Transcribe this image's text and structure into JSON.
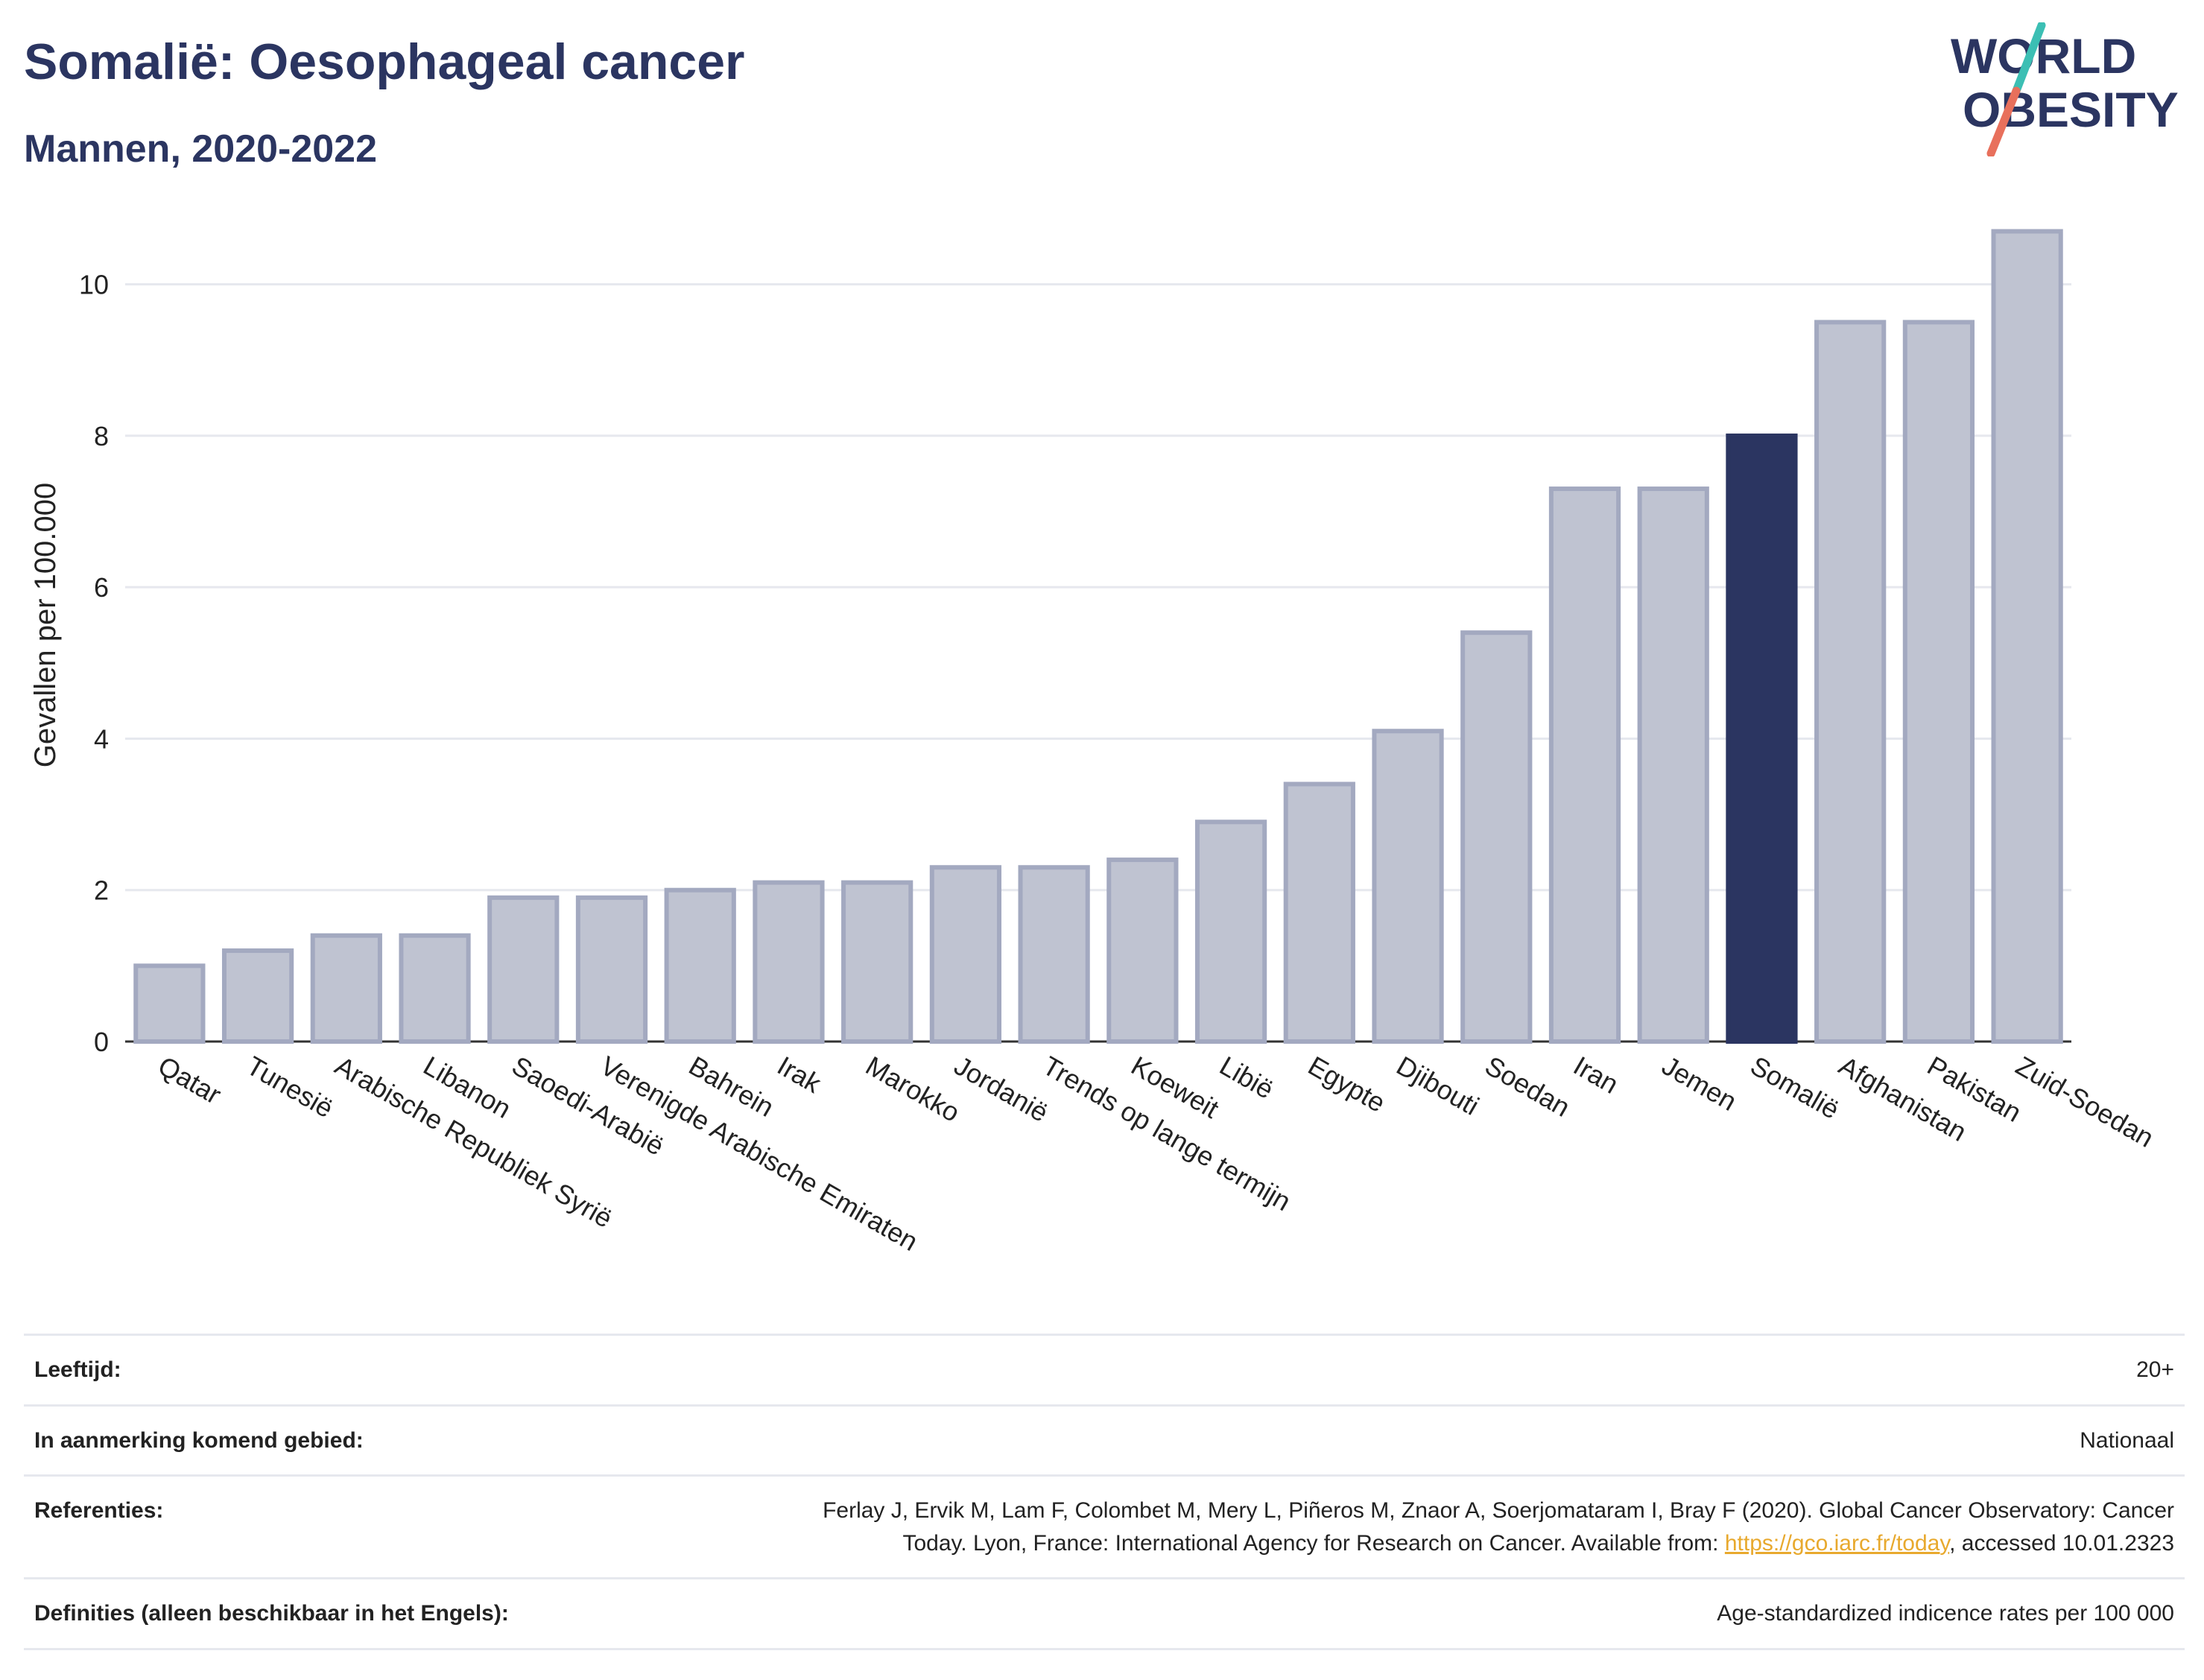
{
  "header": {
    "title": "Somalië: Oesophageal cancer",
    "subtitle": "Mannen, 2020-2022",
    "logo_line1": "WORLD",
    "logo_line2": "OBESITY"
  },
  "colors": {
    "brand": "#2b3561",
    "bar": "#bfc3d1",
    "bar_stroke": "#a3a9c0",
    "highlight": "#2b3561",
    "grid": "#e6e8ee",
    "logo_teal": "#3cbfb4",
    "logo_coral": "#e8705c",
    "link": "#e8a92e"
  },
  "chart_data": {
    "type": "bar",
    "title": "Somalië: Oesophageal cancer",
    "subtitle": "Mannen, 2020-2022",
    "ylabel": "Gevallen per 100.000",
    "xlabel": "",
    "ylim": [
      0,
      11
    ],
    "yticks": [
      0,
      2,
      4,
      6,
      8,
      10
    ],
    "grid": true,
    "highlight": "Somalië",
    "categories": [
      "Qatar",
      "Tunesië",
      "Arabische Republiek Syrië",
      "Libanon",
      "Saoedi-Arabië",
      "Verenigde Arabische Emiraten",
      "Bahrein",
      "Irak",
      "Marokko",
      "Jordanië",
      "Trends op lange termijn",
      "Koeweit",
      "Libië",
      "Egypte",
      "Djibouti",
      "Soedan",
      "Iran",
      "Jemen",
      "Somalië",
      "Afghanistan",
      "Pakistan",
      "Zuid-Soedan"
    ],
    "values": [
      1.0,
      1.2,
      1.4,
      1.4,
      1.9,
      1.9,
      2.0,
      2.1,
      2.1,
      2.3,
      2.3,
      2.4,
      2.9,
      3.4,
      4.1,
      5.4,
      7.3,
      7.3,
      8.0,
      9.5,
      9.5,
      10.7
    ]
  },
  "meta": [
    {
      "key": "Leeftijd:",
      "value": "20+"
    },
    {
      "key": "In aanmerking komend gebied:",
      "value": "Nationaal"
    },
    {
      "key": "Referenties:",
      "value_line1": "Ferlay J, Ervik M, Lam F, Colombet M, Mery L, Piñeros M, Znaor A, Soerjomataram I, Bray F (2020). Global Cancer Observatory: Cancer",
      "value_line2_pre": "Today. Lyon, France: International Agency for Research on Cancer. Available from: ",
      "link": "https://gco.iarc.fr/today",
      "value_line2_post": ", accessed 10.01.2323"
    },
    {
      "key": "Definities (alleen beschikbaar in het Engels):",
      "value": "Age-standardized indicence rates per 100 000"
    }
  ]
}
